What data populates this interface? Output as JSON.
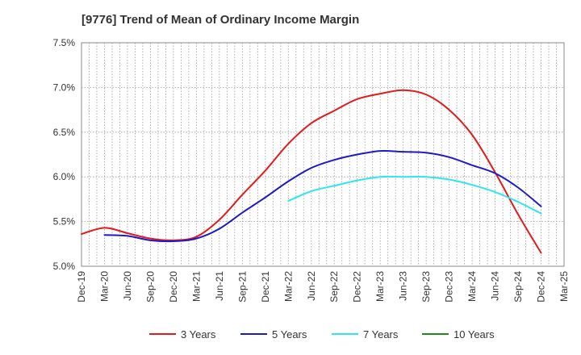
{
  "title": "[9776]  Trend of Mean of Ordinary Income Margin",
  "chart_data": {
    "type": "line",
    "title": "[9776]  Trend of Mean of Ordinary Income Margin",
    "xlabel": "",
    "ylabel": "",
    "ylim": [
      5.0,
      7.5
    ],
    "y_ticks": [
      5.0,
      5.5,
      6.0,
      6.5,
      7.0,
      7.5
    ],
    "y_tick_labels": [
      "5.0%",
      "5.5%",
      "6.0%",
      "6.5%",
      "7.0%",
      "7.5%"
    ],
    "x_tick_labels": [
      "Dec-19",
      "Mar-20",
      "Jun-20",
      "Sep-20",
      "Dec-20",
      "Mar-21",
      "Jun-21",
      "Sep-21",
      "Dec-21",
      "Mar-22",
      "Jun-22",
      "Sep-22",
      "Dec-22",
      "Mar-23",
      "Jun-23",
      "Sep-23",
      "Dec-23",
      "Mar-24",
      "Jun-24",
      "Sep-24",
      "Dec-24",
      "Mar-25"
    ],
    "grid": true,
    "legend_position": "bottom",
    "series": [
      {
        "name": "3 Years",
        "color": "#e31a1c",
        "x": [
          "Dec-19",
          "Mar-20",
          "Jun-20",
          "Sep-20",
          "Dec-20",
          "Mar-21",
          "Jun-21",
          "Sep-21",
          "Dec-21",
          "Mar-22",
          "Jun-22",
          "Sep-22",
          "Dec-22",
          "Mar-23",
          "Jun-23",
          "Sep-23",
          "Dec-23",
          "Mar-24",
          "Jun-24",
          "Sep-24",
          "Dec-24"
        ],
        "values": [
          5.36,
          5.43,
          5.37,
          5.31,
          5.29,
          5.33,
          5.52,
          5.8,
          6.07,
          6.37,
          6.6,
          6.74,
          6.87,
          6.93,
          6.97,
          6.92,
          6.75,
          6.47,
          6.05,
          5.58,
          5.15
        ]
      },
      {
        "name": "5 Years",
        "color": "#1a1acb",
        "x": [
          "Mar-20",
          "Jun-20",
          "Sep-20",
          "Dec-20",
          "Mar-21",
          "Jun-21",
          "Sep-21",
          "Dec-21",
          "Mar-22",
          "Jun-22",
          "Sep-22",
          "Dec-22",
          "Mar-23",
          "Jun-23",
          "Sep-23",
          "Dec-23",
          "Mar-24",
          "Jun-24",
          "Sep-24",
          "Dec-24"
        ],
        "values": [
          5.35,
          5.34,
          5.29,
          5.28,
          5.31,
          5.42,
          5.6,
          5.77,
          5.95,
          6.1,
          6.19,
          6.25,
          6.29,
          6.28,
          6.27,
          6.22,
          6.13,
          6.04,
          5.88,
          5.67
        ]
      },
      {
        "name": "7 Years",
        "color": "#2fe6ee",
        "x": [
          "Mar-22",
          "Jun-22",
          "Sep-22",
          "Dec-22",
          "Mar-23",
          "Jun-23",
          "Sep-23",
          "Dec-23",
          "Mar-24",
          "Jun-24",
          "Sep-24",
          "Dec-24"
        ],
        "values": [
          5.73,
          5.84,
          5.9,
          5.96,
          6.0,
          6.0,
          6.0,
          5.97,
          5.91,
          5.83,
          5.72,
          5.59
        ]
      },
      {
        "name": "10 Years",
        "color": "#1e8a1e",
        "x": [],
        "values": []
      }
    ]
  }
}
